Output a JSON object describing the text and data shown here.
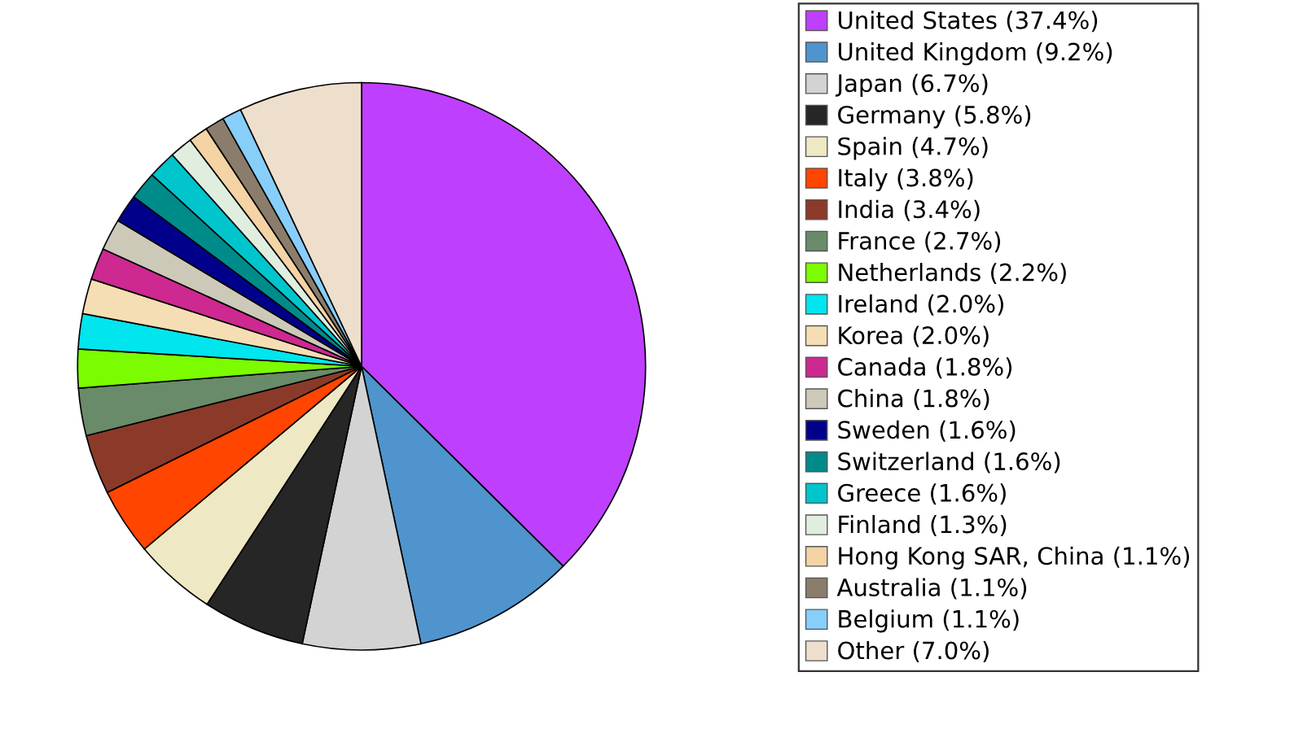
{
  "chart_data": {
    "type": "pie",
    "legend": "right",
    "categories": [
      "United States (37.4%)",
      "United Kingdom (9.2%)",
      "Japan (6.7%)",
      "Germany (5.8%)",
      "Spain (4.7%)",
      "Italy (3.8%)",
      "India (3.4%)",
      "France (2.7%)",
      "Netherlands (2.2%)",
      "Ireland (2.0%)",
      "Korea (2.0%)",
      "Canada (1.8%)",
      "China (1.8%)",
      "Sweden (1.6%)",
      "Switzerland (1.6%)",
      "Greece (1.6%)",
      "Finland (1.3%)",
      "Hong Kong SAR, China (1.1%)",
      "Australia (1.1%)",
      "Belgium (1.1%)",
      "Other (7.0%)"
    ],
    "values": [
      37.4,
      9.2,
      6.7,
      5.8,
      4.7,
      3.8,
      3.4,
      2.7,
      2.2,
      2.0,
      2.0,
      1.8,
      1.8,
      1.6,
      1.6,
      1.6,
      1.3,
      1.1,
      1.1,
      1.1,
      7.0
    ],
    "colors": [
      "#bf3fff",
      "#4f94cd",
      "#d3d3d3",
      "#262626",
      "#eee8c4",
      "#ff4500",
      "#8b3a2a",
      "#698b69",
      "#7cfc00",
      "#00e5ee",
      "#f5deb3",
      "#cd2990",
      "#cdc9b8",
      "#00008b",
      "#008b8b",
      "#00c5cd",
      "#e0eee0",
      "#f4d3a5",
      "#8b7d6b",
      "#87cefa",
      "#eedfcc"
    ]
  }
}
